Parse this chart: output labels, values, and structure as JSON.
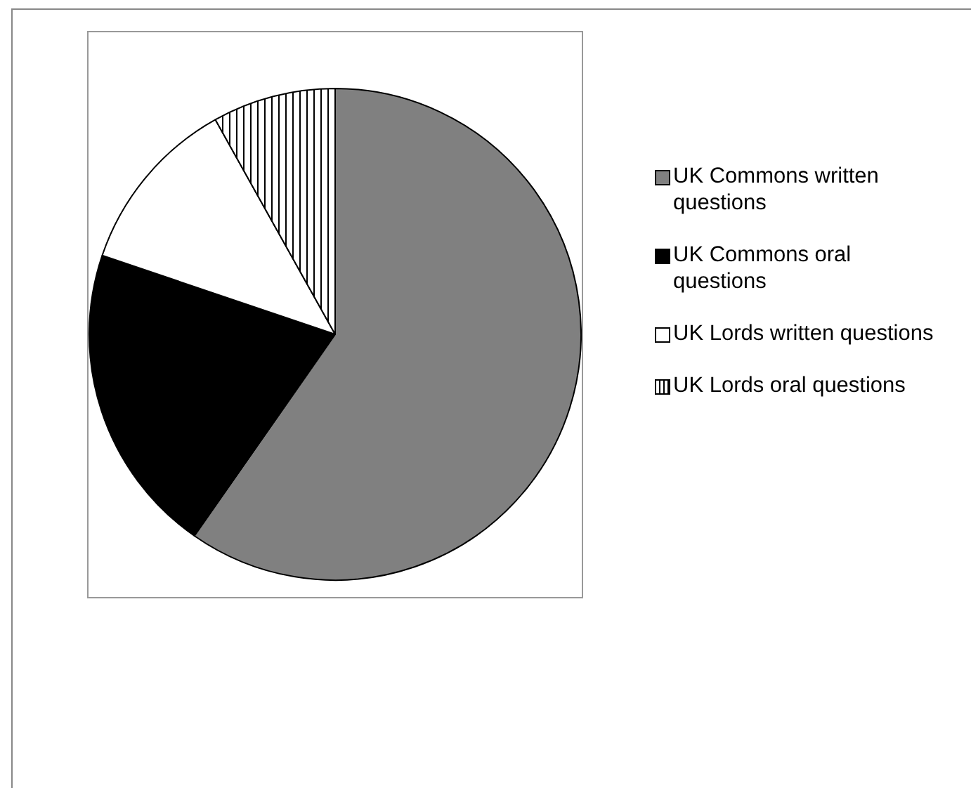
{
  "chart_data": {
    "type": "pie",
    "categories": [
      "UK Commons written questions",
      "UK Commons oral questions",
      "UK Lords written questions",
      "UK Lords oral questions"
    ],
    "values": [
      59.7,
      20.5,
      11.7,
      8.1
    ],
    "colors": [
      "#808080",
      "#000000",
      "#ffffff",
      "#ffffff"
    ],
    "legend": "right"
  }
}
